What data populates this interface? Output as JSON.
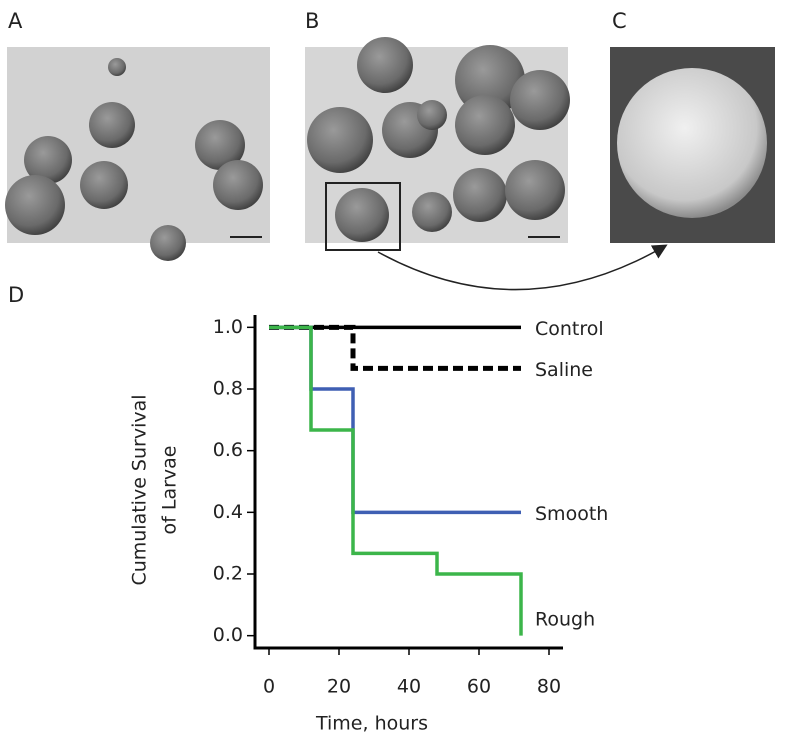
{
  "panels": [
    "A",
    "B",
    "C",
    "D"
  ],
  "chart_data": {
    "type": "step",
    "ylabel": [
      "Cumulative Survival",
      "of Larvae"
    ],
    "xlabel": "Time, hours",
    "xlim": [
      -4,
      84
    ],
    "xticks": [
      0,
      20,
      40,
      60,
      80
    ],
    "ylim": [
      -0.04,
      1.04
    ],
    "yticks": [
      {
        "value": 0,
        "label": "0.0"
      },
      0.2,
      0.4,
      0.6,
      0.8,
      {
        "value": 1,
        "label": "1.0"
      }
    ],
    "series": [
      {
        "name": "Control",
        "color": "#000000",
        "dash": false,
        "x": [
          0,
          72
        ],
        "values": [
          1,
          1
        ]
      },
      {
        "name": "Saline",
        "color": "#000000",
        "dash": true,
        "x": [
          0,
          24,
          72
        ],
        "values": [
          1,
          0.867,
          0.867
        ]
      },
      {
        "name": "Smooth",
        "color": "#3f5fb3",
        "dash": false,
        "x": [
          0,
          12,
          24,
          72
        ],
        "values": [
          1,
          0.8,
          0.4,
          0.4
        ]
      },
      {
        "name": "Rough",
        "color": "#3cb54a",
        "dash": false,
        "x": [
          0,
          12,
          24,
          48,
          72,
          72
        ],
        "values": [
          1,
          0.667,
          0.267,
          0.2,
          0.2,
          0
        ]
      }
    ]
  }
}
